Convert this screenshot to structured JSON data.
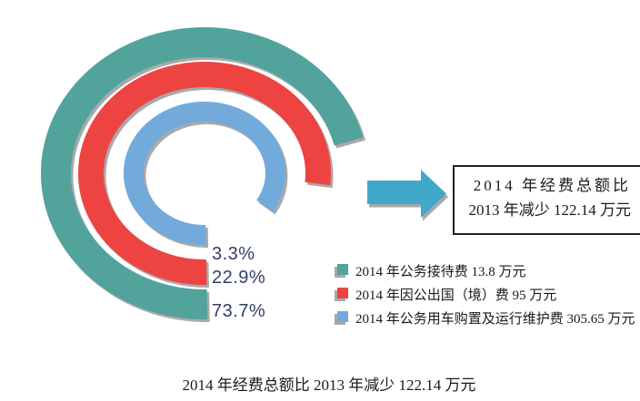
{
  "colors": {
    "teal": "#52A39C",
    "red": "#ED4441",
    "blue": "#72AADC",
    "arrow": "#40A9C9",
    "shadow": "#A9A9A9",
    "percent_text": "#333E6B",
    "text": "#1A1A1A",
    "background": "#FFFFFF"
  },
  "chart_data": {
    "type": "donut",
    "variant": "concentric-arc-rings with drop shadow, gap at lower right",
    "title": "",
    "caption": "2014 年经费总额比 2013 年减少 122.14 万元",
    "unit": "万元",
    "series": [
      {
        "name": "2014 年公务接待费",
        "value": 13.8,
        "unit": "万元",
        "percent": 3.3,
        "color": "#52A39C",
        "ring": "outer"
      },
      {
        "name": "2014 年因公出国（境）费",
        "value": 95,
        "unit": "万元",
        "percent": 22.9,
        "color": "#ED4441",
        "ring": "middle"
      },
      {
        "name": "2014 年公务用车购置及运行维护费",
        "value": 305.65,
        "unit": "万元",
        "percent": 73.7,
        "color": "#72AADC",
        "ring": "inner"
      }
    ],
    "percent_labels": [
      "3.3%",
      "22.9%",
      "73.7%"
    ],
    "legend": [
      {
        "label": "2014 年公务接待费 13.8 万元",
        "color": "#52A39C"
      },
      {
        "label": "2014 年因公出国（境）费 95 万元",
        "color": "#ED4441"
      },
      {
        "label": "2014 年公务用车购置及运行维护费 305.65 万元",
        "color": "#72AADC"
      }
    ],
    "legend_position": "right-of-chart, lower",
    "grid": false,
    "axes": false
  },
  "annotation_box": {
    "line1": "2014 年经费总额比",
    "line2": "2013 年减少 122.14 万元"
  }
}
